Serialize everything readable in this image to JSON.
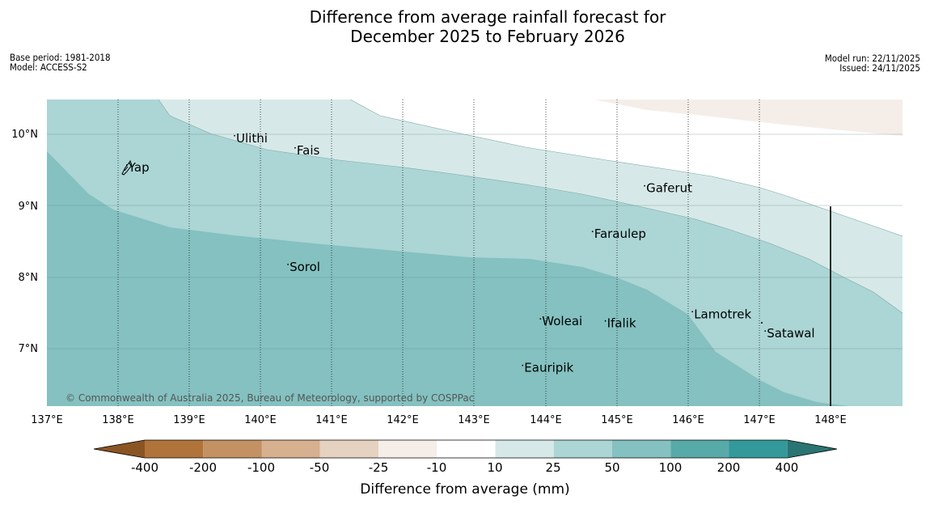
{
  "title": {
    "line1": "Difference from average rainfall forecast for",
    "line2": "December 2025 to February 2026"
  },
  "meta_left": {
    "base_period": "Base period: 1981-2018",
    "model": "Model: ACCESS-S2"
  },
  "meta_right": {
    "model_run": "Model run: 22/11/2025",
    "issued": "Issued: 24/11/2025"
  },
  "copyright": "© Commonwealth of Australia 2025, Bureau of Meteorology, supported by COSPPac",
  "axes": {
    "x_ticks": [
      "137°E",
      "138°E",
      "139°E",
      "140°E",
      "141°E",
      "142°E",
      "143°E",
      "144°E",
      "145°E",
      "146°E",
      "147°E",
      "148°E"
    ],
    "y_ticks": [
      "10°N",
      "9°N",
      "8°N",
      "7°N"
    ]
  },
  "places": [
    {
      "name": "Ulithi",
      "lon": 139.63,
      "lat": 9.93
    },
    {
      "name": "Fais",
      "lon": 140.48,
      "lat": 9.76
    },
    {
      "name": "Yap",
      "lon": 138.12,
      "lat": 9.52
    },
    {
      "name": "Gaferut",
      "lon": 145.38,
      "lat": 9.23
    },
    {
      "name": "Faraulep",
      "lon": 144.65,
      "lat": 8.59
    },
    {
      "name": "Sorol",
      "lon": 140.38,
      "lat": 8.13
    },
    {
      "name": "Lamotrek",
      "lon": 146.05,
      "lat": 7.47
    },
    {
      "name": "Woleai",
      "lon": 143.92,
      "lat": 7.37
    },
    {
      "name": "Ifalik",
      "lon": 144.83,
      "lat": 7.34
    },
    {
      "name": "Satawal",
      "lon": 147.07,
      "lat": 7.2
    },
    {
      "name": "Eauripik",
      "lon": 143.67,
      "lat": 6.72
    }
  ],
  "colorbar": {
    "label": "Difference from average (mm)",
    "ticks": [
      "-400",
      "-200",
      "-100",
      "-50",
      "-25",
      "-10",
      "10",
      "25",
      "50",
      "100",
      "200",
      "400"
    ],
    "colors": [
      "#8a5523",
      "#b0743b",
      "#c39162",
      "#d6b08f",
      "#e6d2c0",
      "#f5eee8",
      "#ffffff",
      "#d6e9e8",
      "#acd5d5",
      "#84c1c0",
      "#58aaa9",
      "#33999a",
      "#2b7474"
    ]
  },
  "colors": {
    "band_50_100": "#84c1c0",
    "band_25_50": "#acd5d5",
    "band_10_25": "#d6e9e8",
    "band_neg_25_10": "#f5eee8",
    "band_none": "#ffffff"
  }
}
